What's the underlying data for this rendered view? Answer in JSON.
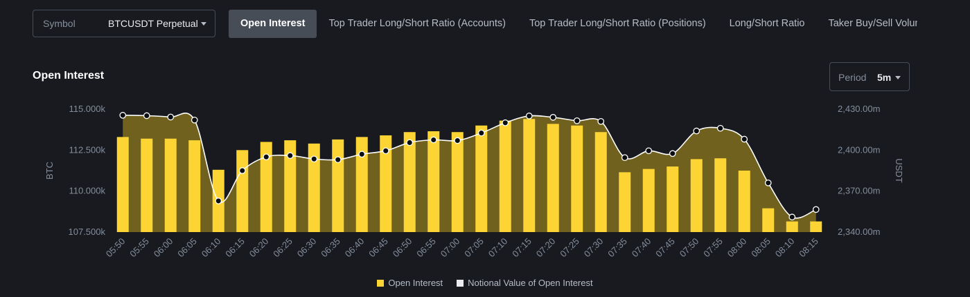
{
  "symbol": {
    "label": "Symbol",
    "value": "BTCUSDT Perpetual"
  },
  "tabs": [
    {
      "label": "Open Interest",
      "active": true
    },
    {
      "label": "Top Trader Long/Short Ratio (Accounts)",
      "active": false
    },
    {
      "label": "Top Trader Long/Short Ratio (Positions)",
      "active": false
    },
    {
      "label": "Long/Short Ratio",
      "active": false
    },
    {
      "label": "Taker Buy/Sell Volume",
      "active": false
    }
  ],
  "section_title": "Open Interest",
  "period": {
    "label": "Period",
    "value": "5m"
  },
  "colors": {
    "bar": "#fcd535",
    "line": "#ffffff",
    "area": "#8f7a1f",
    "background": "#181a20",
    "axis_text": "#848e9c"
  },
  "chart_data": {
    "type": "bar",
    "categories": [
      "05:50",
      "05:55",
      "06:00",
      "06:05",
      "06:10",
      "06:15",
      "06:20",
      "06:25",
      "06:30",
      "06:35",
      "06:40",
      "06:45",
      "06:50",
      "06:55",
      "07:00",
      "07:05",
      "07:10",
      "07:15",
      "07:20",
      "07:25",
      "07:30",
      "07:35",
      "07:40",
      "07:45",
      "07:50",
      "07:55",
      "08:00",
      "08:05",
      "08:10",
      "08:15"
    ],
    "series": [
      {
        "name": "Open Interest",
        "axis": "left",
        "type": "bar",
        "values": [
          113300,
          113200,
          113200,
          113100,
          111300,
          112500,
          113000,
          113100,
          112900,
          113150,
          113300,
          113400,
          113600,
          113650,
          113600,
          114000,
          114300,
          114400,
          114100,
          114000,
          113600,
          111150,
          111350,
          111500,
          111950,
          112000,
          111250,
          108950,
          108150,
          108150
        ]
      },
      {
        "name": "Notional Value of Open Interest",
        "axis": "right",
        "type": "line",
        "values": [
          2425.5,
          2425.2,
          2424.2,
          2422.0,
          2362.8,
          2385.0,
          2395.0,
          2396.0,
          2393.5,
          2393.0,
          2397.0,
          2399.5,
          2405.5,
          2407.5,
          2407.0,
          2412.5,
          2420.0,
          2425.0,
          2424.0,
          2421.5,
          2421.0,
          2394.5,
          2399.5,
          2397.5,
          2414.0,
          2416.0,
          2408.0,
          2376.0,
          2351.0,
          2356.5
        ]
      }
    ],
    "y_left": {
      "label": "BTC",
      "ticks": [
        "115.000k",
        "112.500k",
        "110.000k",
        "107.500k"
      ],
      "ylim": [
        107500,
        115000
      ]
    },
    "y_right": {
      "label": "USDT",
      "ticks": [
        "2,430.00m",
        "2,400.00m",
        "2,370.00m",
        "2,340.00m"
      ],
      "ylim": [
        2340,
        2430
      ]
    },
    "legend": [
      "Open Interest",
      "Notional Value of Open Interest"
    ],
    "legend_position": "bottom"
  }
}
